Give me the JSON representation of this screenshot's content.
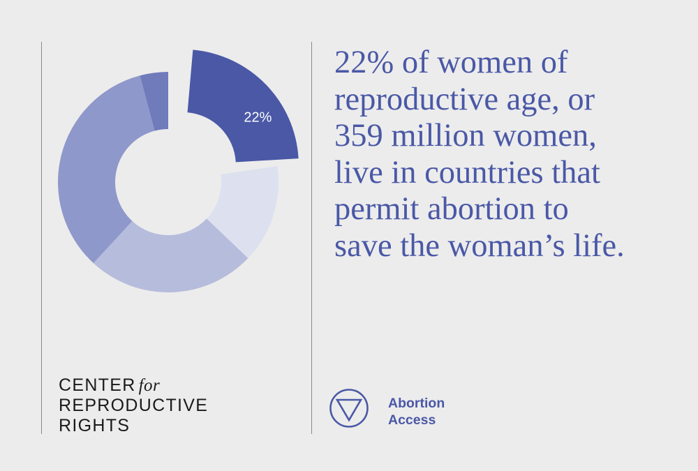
{
  "chart_data": {
    "type": "pie",
    "variant": "donut",
    "slices": [
      {
        "value": 22,
        "color": "#4a58a6",
        "label": "22%",
        "highlighted": true
      },
      {
        "value": 14,
        "color": "#dde1ef"
      },
      {
        "value": 24,
        "color": "#b6bcdc"
      },
      {
        "value": 33,
        "color": "#8f98ca"
      },
      {
        "value": 4,
        "color": "#6f7bbb"
      }
    ]
  },
  "headline": {
    "lines": [
      "22% of women of",
      "reproductive age, or",
      "359 million women,",
      "live in countries that",
      "permit abortion to",
      "save the woman’s life."
    ]
  },
  "logo": {
    "line1": "CENTER",
    "line1_for": "for",
    "line2": "REPRODUCTIVE",
    "line3": "RIGHTS"
  },
  "topic": {
    "line1": "Abortion",
    "line2": "Access",
    "icon": "downward-triangle-in-circle-icon"
  },
  "colors": {
    "background": "#ececec",
    "accent": "#4a58a6",
    "logo_text": "#1a1a1a",
    "divider": "#8a8a8a"
  }
}
